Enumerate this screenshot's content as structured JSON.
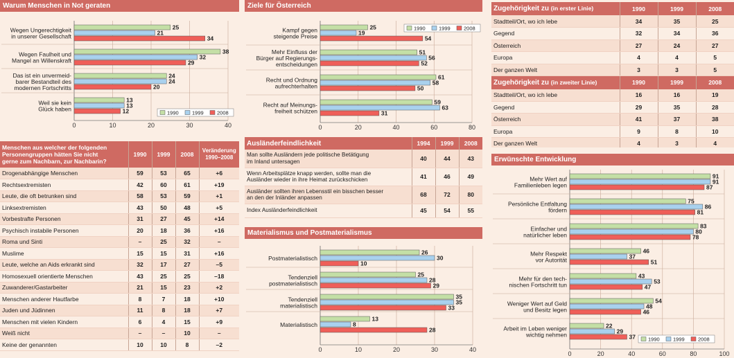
{
  "colors": {
    "y1990": "#c4dfa6",
    "y1999": "#a9d1ee",
    "y2008": "#ef5f59",
    "header": "#cf6a62"
  },
  "chart_data": [
    {
      "type": "bar",
      "orientation": "horizontal",
      "title": "Warum Menschen in Not geraten",
      "legend": [
        "1990",
        "1999",
        "2008"
      ],
      "categories": [
        [
          "Wegen Ungerechtigkeit",
          "in unserer Gesellschaft"
        ],
        [
          "Wegen Faulheit und",
          "Mangel an Willenskraft"
        ],
        [
          "Das ist ein unvermeid-",
          "barer Bestandteil des",
          "modernen Fortschritts"
        ],
        [
          "Weil sie kein",
          "Glück haben"
        ]
      ],
      "series": [
        {
          "name": "1990",
          "values": [
            25,
            38,
            24,
            13
          ]
        },
        {
          "name": "1999",
          "values": [
            21,
            32,
            24,
            13
          ]
        },
        {
          "name": "2008",
          "values": [
            34,
            29,
            20,
            12
          ]
        }
      ],
      "xlim": [
        0,
        40
      ],
      "ticks": [
        0,
        10,
        20,
        30,
        40
      ]
    },
    {
      "type": "bar",
      "orientation": "horizontal",
      "title": "Ziele für Österreich",
      "legend": [
        "1990",
        "1999",
        "2008"
      ],
      "categories": [
        [
          "Kampf gegen",
          "steigende Preise"
        ],
        [
          "Mehr Einfluss der",
          "Bürger auf Regierungs-",
          "entscheidungen"
        ],
        [
          "Recht und Ordnung",
          "aufrechterhalten"
        ],
        [
          "Recht auf Meinungs-",
          "freiheit schützen"
        ]
      ],
      "series": [
        {
          "name": "1990",
          "values": [
            25,
            51,
            61,
            59
          ]
        },
        {
          "name": "1999",
          "values": [
            19,
            56,
            58,
            63
          ]
        },
        {
          "name": "2008",
          "values": [
            54,
            52,
            50,
            31
          ]
        }
      ],
      "xlim": [
        0,
        80
      ],
      "ticks": [
        0,
        20,
        40,
        60,
        80
      ]
    },
    {
      "type": "bar",
      "orientation": "horizontal",
      "title": "Materialismus und Postmaterialismus",
      "legend": [
        "1990",
        "1999",
        "2008"
      ],
      "categories": [
        [
          "Postmaterialistisch"
        ],
        [
          "Tendenziell",
          "postmaterialistisch"
        ],
        [
          "Tendenziell",
          "materialistisch"
        ],
        [
          "Materialistisch"
        ]
      ],
      "series": [
        {
          "name": "1990",
          "values": [
            26,
            25,
            35,
            13
          ]
        },
        {
          "name": "1999",
          "values": [
            30,
            28,
            35,
            8
          ]
        },
        {
          "name": "2008",
          "values": [
            10,
            29,
            33,
            28
          ]
        }
      ],
      "xlim": [
        0,
        40
      ],
      "ticks": [
        0,
        10,
        20,
        30,
        40
      ]
    },
    {
      "type": "bar",
      "orientation": "horizontal",
      "title": "Erwünschte Entwicklung",
      "legend": [
        "1990",
        "1999",
        "2008"
      ],
      "categories": [
        [
          "Mehr Wert auf",
          "Familienleben legen"
        ],
        [
          "Persönliche Entfaltung",
          "fördern"
        ],
        [
          "Einfacher und",
          "natürlicher leben"
        ],
        [
          "Mehr Respekt",
          "vor Autorität"
        ],
        [
          "Mehr für den tech-",
          "nischen Fortschritt tun"
        ],
        [
          "Weniger Wert auf Geld",
          "und Besitz legen"
        ],
        [
          "Arbeit im Leben weniger",
          "wichtig nehmen"
        ]
      ],
      "series": [
        {
          "name": "1990",
          "values": [
            91,
            75,
            83,
            46,
            43,
            54,
            22
          ]
        },
        {
          "name": "1999",
          "values": [
            91,
            86,
            80,
            37,
            53,
            48,
            29
          ]
        },
        {
          "name": "2008",
          "values": [
            87,
            81,
            78,
            51,
            47,
            46,
            37
          ]
        }
      ],
      "xlim": [
        0,
        100
      ],
      "ticks": [
        0,
        20,
        40,
        60,
        80,
        100
      ]
    }
  ],
  "nachbarn": {
    "title": "Menschen aus welcher der folgenden Personengruppen hätten Sie nicht gerne zum Nachbarn, zur Nachbarin?",
    "title_lines": [
      "Menschen aus welcher der folgenden",
      "Personengruppen hätten Sie nicht",
      "gerne zum Nachbarn, zur Nachbarin?"
    ],
    "cols": [
      "1990",
      "1999",
      "2008"
    ],
    "change_lines": [
      "Veränderung",
      "1990–2008"
    ],
    "rows": [
      [
        "Drogenabhängige Menschen",
        "59",
        "53",
        "65",
        "+6"
      ],
      [
        "Rechtsextremisten",
        "42",
        "60",
        "61",
        "+19"
      ],
      [
        "Leute, die oft betrunken sind",
        "58",
        "53",
        "59",
        "+1"
      ],
      [
        "Linksextremisten",
        "43",
        "50",
        "48",
        "+5"
      ],
      [
        "Vorbestrafte Personen",
        "31",
        "27",
        "45",
        "+14"
      ],
      [
        "Psychisch instabile Personen",
        "20",
        "18",
        "36",
        "+16"
      ],
      [
        "Roma und Sinti",
        "–",
        "25",
        "32",
        "–"
      ],
      [
        "Muslime",
        "15",
        "15",
        "31",
        "+16"
      ],
      [
        "Leute, welche an Aids erkrankt sind",
        "32",
        "17",
        "27",
        "–5"
      ],
      [
        "Homosexuell orientierte Menschen",
        "43",
        "25",
        "25",
        "–18"
      ],
      [
        "Zuwanderer/Gastarbeiter",
        "21",
        "15",
        "23",
        "+2"
      ],
      [
        "Menschen anderer Hautfarbe",
        "8",
        "7",
        "18",
        "+10"
      ],
      [
        "Juden und Jüdinnen",
        "11",
        "8",
        "18",
        "+7"
      ],
      [
        "Menschen mit vielen Kindern",
        "6",
        "4",
        "15",
        "+9"
      ],
      [
        "Weiß nicht",
        "–",
        "–",
        "10",
        "–"
      ],
      [
        "Keine der genannten",
        "10",
        "10",
        "8",
        "–2"
      ]
    ]
  },
  "auslaender": {
    "title": "Ausländerfeindlichkeit",
    "cols": [
      "1994",
      "1999",
      "2008"
    ],
    "rows": [
      {
        "lines": [
          "Man sollte Ausländern jede politische Betätigung",
          "im Inland untersagen"
        ],
        "v": [
          "40",
          "44",
          "43"
        ]
      },
      {
        "lines": [
          "Wenn Arbeitsplätze knapp werden, sollte man die",
          "Ausländer wieder in ihre Heimat zurückschicken"
        ],
        "v": [
          "41",
          "46",
          "49"
        ]
      },
      {
        "lines": [
          "Ausländer sollten ihren Lebensstil ein bisschen besser",
          "an den der Inländer anpassen"
        ],
        "v": [
          "68",
          "72",
          "80"
        ]
      },
      {
        "lines": [
          "Index Ausländerfeindlichkeit"
        ],
        "v": [
          "45",
          "54",
          "55"
        ]
      }
    ]
  },
  "zugehoerigkeit": {
    "title1": "Zugehörigkeit zu",
    "title1b": "(in erster Linie)",
    "title2": "Zugehörigkeit zu",
    "title2b": "(in zweiter Linie)",
    "cols": [
      "1990",
      "1999",
      "2008"
    ],
    "rows1": [
      [
        "Stadtteil/Ort, wo ich lebe",
        "34",
        "35",
        "25"
      ],
      [
        "Gegend",
        "32",
        "34",
        "36"
      ],
      [
        "Österreich",
        "27",
        "24",
        "27"
      ],
      [
        "Europa",
        "4",
        "4",
        "5"
      ],
      [
        "Der ganzen Welt",
        "3",
        "3",
        "5"
      ]
    ],
    "rows2": [
      [
        "Stadtteil/Ort, wo ich lebe",
        "16",
        "16",
        "19"
      ],
      [
        "Gegend",
        "29",
        "35",
        "28"
      ],
      [
        "Österreich",
        "41",
        "37",
        "38"
      ],
      [
        "Europa",
        "9",
        "8",
        "10"
      ],
      [
        "Der ganzen Welt",
        "4",
        "3",
        "4"
      ]
    ]
  }
}
